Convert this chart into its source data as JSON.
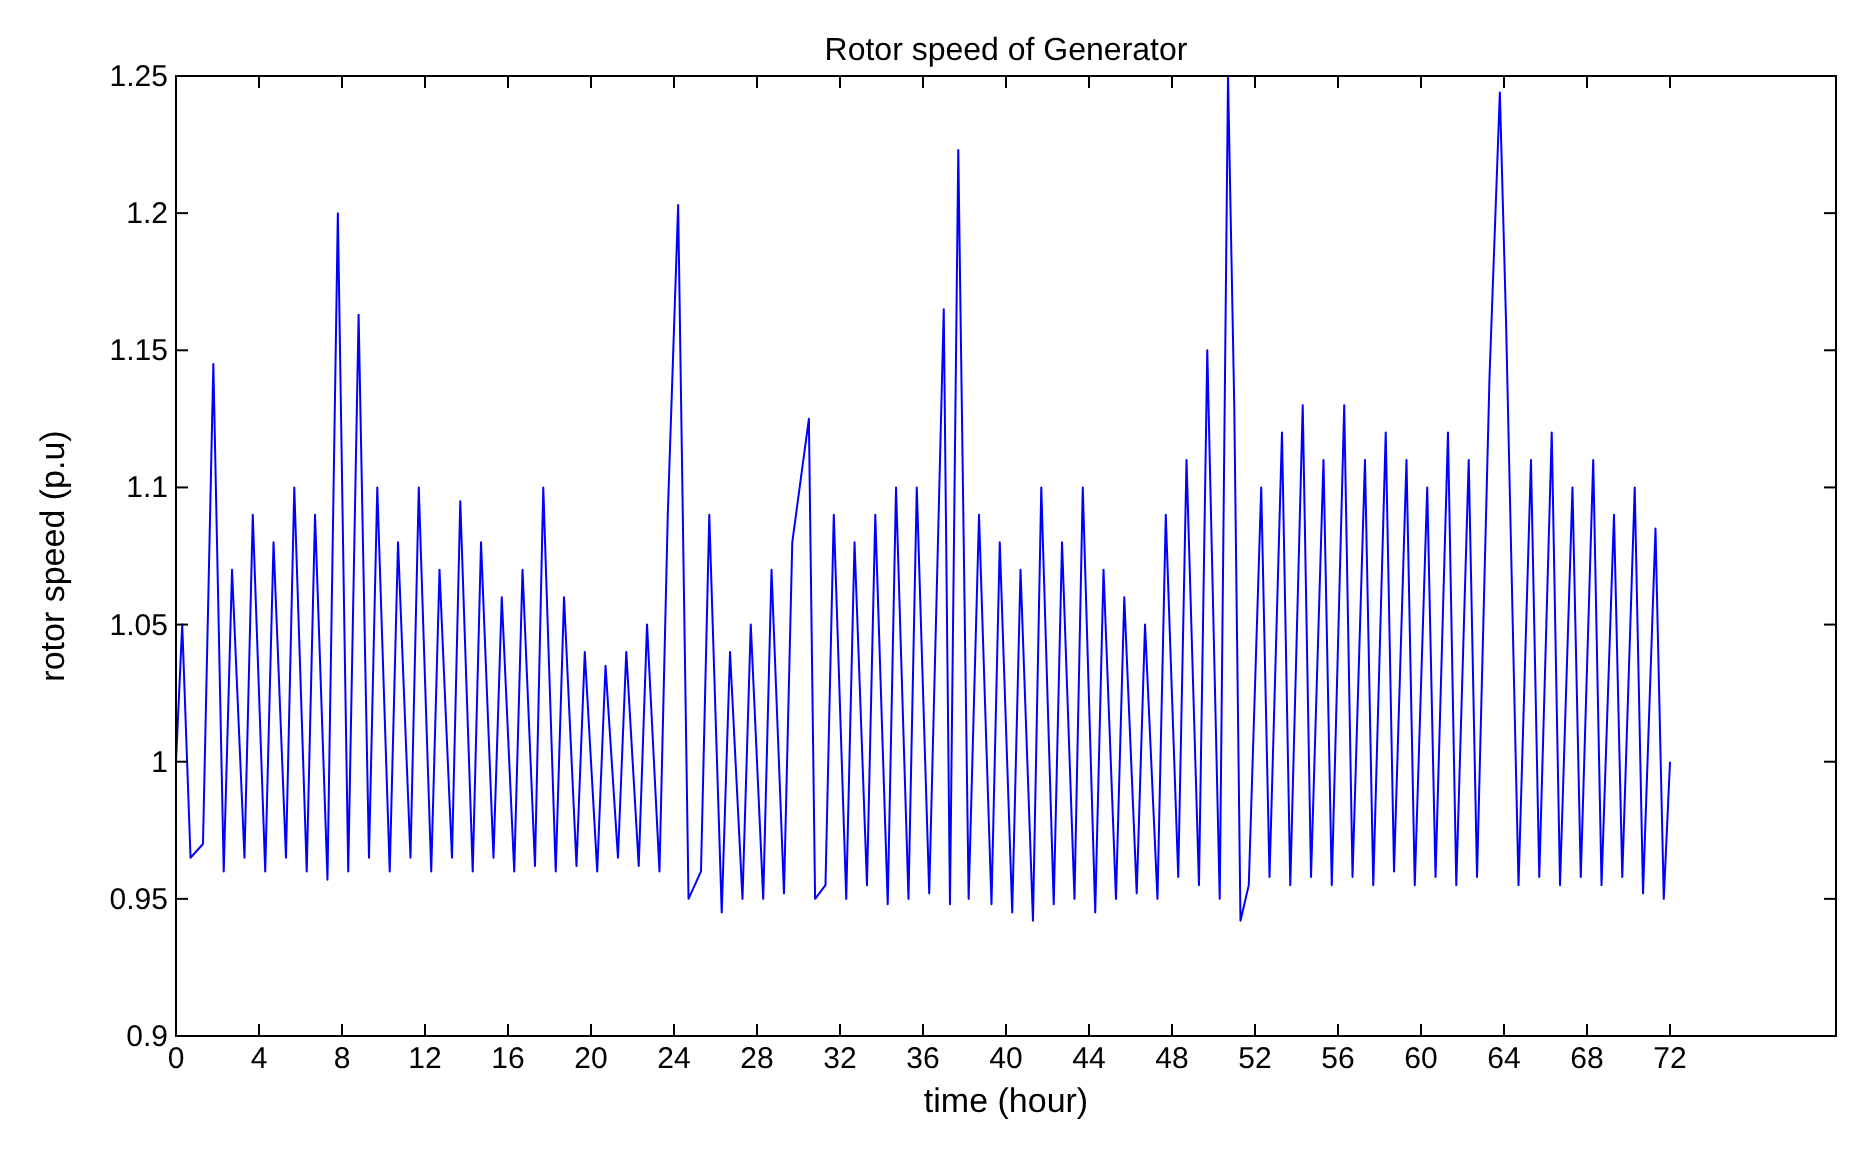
{
  "chart_data": {
    "type": "line",
    "title": "Rotor speed of Generator",
    "xlabel": "time (hour)",
    "ylabel": "rotor speed (p.u)",
    "xlim": [
      0,
      80
    ],
    "ylim": [
      0.9,
      1.25
    ],
    "xticks": [
      0,
      4,
      8,
      12,
      16,
      20,
      24,
      28,
      32,
      36,
      40,
      44,
      48,
      52,
      56,
      60,
      64,
      68,
      72
    ],
    "yticks": [
      0.9,
      0.95,
      1,
      1.05,
      1.1,
      1.15,
      1.2,
      1.25
    ],
    "grid": false,
    "line_style": "solid",
    "marker": "none",
    "series": [
      {
        "color": "#0000ff",
        "x": [
          0,
          0.3,
          0.7,
          1.3,
          1.8,
          2.3,
          2.7,
          3.3,
          3.7,
          4.3,
          4.7,
          5.3,
          5.7,
          6.3,
          6.7,
          7.3,
          7.8,
          8.3,
          8.8,
          9.3,
          9.7,
          10.3,
          10.7,
          11.3,
          11.7,
          12.3,
          12.7,
          13.3,
          13.7,
          14.3,
          14.7,
          15.3,
          15.7,
          16.3,
          16.7,
          17.3,
          17.7,
          18.3,
          18.7,
          19.3,
          19.7,
          20.3,
          20.7,
          21.3,
          21.7,
          22.3,
          22.7,
          23.3,
          23.7,
          24.2,
          24.7,
          25.3,
          25.7,
          26.3,
          26.7,
          27.3,
          27.7,
          28.3,
          28.7,
          29.3,
          29.7,
          30.5,
          30.8,
          31.3,
          31.7,
          32.3,
          32.7,
          33.3,
          33.7,
          34.3,
          34.7,
          35.3,
          35.7,
          36.3,
          37,
          37.3,
          37.7,
          38.2,
          38.7,
          39.3,
          39.7,
          40.3,
          40.7,
          41.3,
          41.7,
          42.3,
          42.7,
          43.3,
          43.7,
          44.3,
          44.7,
          45.3,
          45.7,
          46.3,
          46.7,
          47.3,
          47.7,
          48.3,
          48.7,
          49.3,
          49.7,
          50.3,
          50.7,
          51,
          51.3,
          51.7,
          52.3,
          52.7,
          53.3,
          53.7,
          54.3,
          54.7,
          55.3,
          55.7,
          56.3,
          56.7,
          57.3,
          57.7,
          58.3,
          58.7,
          59.3,
          59.7,
          60.3,
          60.7,
          61.3,
          61.7,
          62.3,
          62.7,
          63.3,
          63.8,
          64.1,
          64.7,
          65.3,
          65.7,
          66.3,
          66.7,
          67.3,
          67.7,
          68.3,
          68.7,
          69.3,
          69.7,
          70.3,
          70.7,
          71.3,
          71.7,
          72
        ],
        "values": [
          1.0,
          1.05,
          0.965,
          0.97,
          1.145,
          0.96,
          1.07,
          0.965,
          1.09,
          0.96,
          1.08,
          0.965,
          1.1,
          0.96,
          1.09,
          0.957,
          1.2,
          0.96,
          1.163,
          0.965,
          1.1,
          0.96,
          1.08,
          0.965,
          1.1,
          0.96,
          1.07,
          0.965,
          1.095,
          0.96,
          1.08,
          0.965,
          1.06,
          0.96,
          1.07,
          0.962,
          1.1,
          0.96,
          1.06,
          0.962,
          1.04,
          0.96,
          1.035,
          0.965,
          1.04,
          0.962,
          1.05,
          0.96,
          1.09,
          1.203,
          0.95,
          0.96,
          1.09,
          0.945,
          1.04,
          0.95,
          1.05,
          0.95,
          1.07,
          0.952,
          1.08,
          1.125,
          0.95,
          0.955,
          1.09,
          0.95,
          1.08,
          0.955,
          1.09,
          0.948,
          1.1,
          0.95,
          1.1,
          0.952,
          1.165,
          0.948,
          1.223,
          0.95,
          1.09,
          0.948,
          1.08,
          0.945,
          1.07,
          0.942,
          1.1,
          0.948,
          1.08,
          0.95,
          1.1,
          0.945,
          1.07,
          0.95,
          1.06,
          0.952,
          1.05,
          0.95,
          1.09,
          0.958,
          1.11,
          0.955,
          1.15,
          0.95,
          1.25,
          1.13,
          0.942,
          0.955,
          1.1,
          0.958,
          1.12,
          0.955,
          1.13,
          0.958,
          1.11,
          0.955,
          1.13,
          0.958,
          1.11,
          0.955,
          1.12,
          0.96,
          1.11,
          0.955,
          1.1,
          0.958,
          1.12,
          0.955,
          1.11,
          0.958,
          1.14,
          1.244,
          1.16,
          0.955,
          1.11,
          0.958,
          1.12,
          0.955,
          1.1,
          0.958,
          1.11,
          0.955,
          1.09,
          0.958,
          1.1,
          0.952,
          1.085,
          0.95,
          1.0
        ]
      }
    ]
  }
}
